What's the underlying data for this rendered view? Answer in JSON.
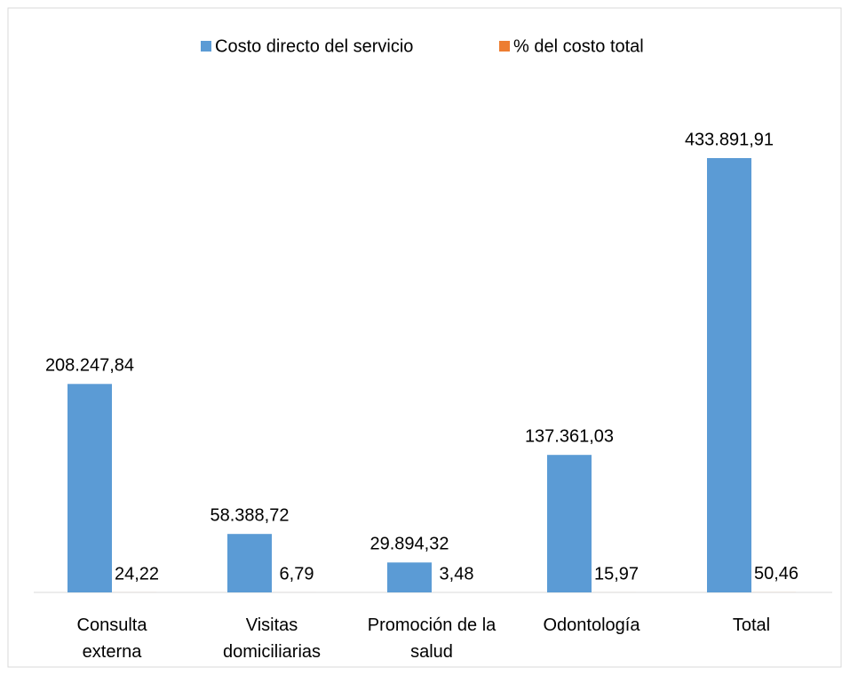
{
  "chart_data": {
    "type": "bar",
    "categories": [
      "Consulta externa",
      "Visitas domiciliarias",
      "Promoción de la salud",
      "Odontología",
      "Total"
    ],
    "series": [
      {
        "name": "Costo directo del servicio",
        "color": "#5b9bd5",
        "values": [
          208247.84,
          58388.72,
          29894.32,
          137361.03,
          433891.91
        ],
        "value_labels": [
          "208.247,84",
          "58.388,72",
          "29.894,32",
          "137.361,03",
          "433.891,91"
        ]
      },
      {
        "name": "% del costo total",
        "color": "#ed7d31",
        "values": [
          24.22,
          6.79,
          3.48,
          15.97,
          50.46
        ],
        "value_labels": [
          "24,22",
          "6,79",
          "3,48",
          "15,97",
          "50,46"
        ]
      }
    ],
    "legend": "top"
  }
}
